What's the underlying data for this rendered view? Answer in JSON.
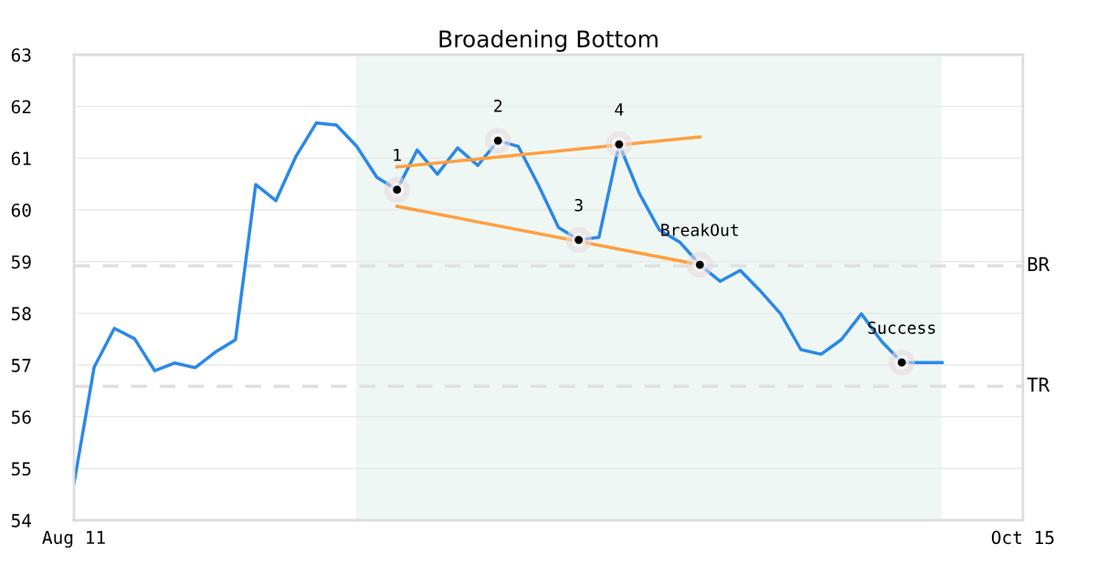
{
  "chart_data": {
    "type": "line",
    "title": "Broadening Bottom",
    "categories": [
      "Aug 11",
      null,
      null,
      null,
      null,
      null,
      null,
      null,
      null,
      null,
      null,
      null,
      null,
      null,
      null,
      null,
      null,
      null,
      null,
      null,
      null,
      null,
      null,
      null,
      null,
      null,
      null,
      null,
      null,
      null,
      null,
      null,
      null,
      null,
      null,
      null,
      null,
      null,
      null,
      null,
      null,
      null,
      null,
      null,
      null,
      null,
      null,
      "Oct 15"
    ],
    "ylim": [
      54,
      63
    ],
    "yticks": [
      54,
      55,
      56,
      57,
      58,
      59,
      60,
      61,
      62,
      63
    ],
    "grid": "y",
    "series": [
      {
        "color": "#2b88e8",
        "values": [
          54.71,
          56.96,
          57.71,
          57.51,
          56.89,
          57.04,
          56.95,
          57.25,
          57.49,
          60.49,
          60.18,
          61.04,
          61.68,
          61.64,
          61.23,
          60.63,
          60.39,
          61.16,
          60.69,
          61.2,
          60.86,
          61.34,
          61.23,
          60.48,
          59.66,
          59.42,
          59.47,
          61.27,
          60.32,
          59.61,
          59.38,
          58.94,
          58.62,
          58.83,
          58.43,
          57.99,
          57.3,
          57.21,
          57.49,
          57.99,
          57.46,
          57.05,
          57.05,
          57.05,
          null,
          null,
          null,
          null
        ]
      },
      {
        "type": "line",
        "color": "#ff9f40",
        "values": [
          null,
          null,
          null,
          null,
          null,
          null,
          null,
          null,
          null,
          null,
          null,
          null,
          null,
          null,
          null,
          null,
          60.83,
          null,
          null,
          null,
          null,
          null,
          null,
          null,
          null,
          null,
          null,
          null,
          null,
          null,
          null,
          61.41,
          null,
          null,
          null,
          null,
          null,
          null,
          null,
          null,
          null,
          null,
          null,
          null,
          null,
          null,
          null,
          null
        ]
      },
      {
        "type": "line",
        "color": "#ff9f40",
        "values": [
          null,
          null,
          null,
          null,
          null,
          null,
          null,
          null,
          null,
          null,
          null,
          null,
          null,
          null,
          null,
          null,
          60.07,
          null,
          null,
          null,
          null,
          null,
          null,
          null,
          null,
          null,
          null,
          null,
          null,
          null,
          null,
          58.94,
          null,
          null,
          null,
          null,
          null,
          null,
          null,
          null,
          null,
          null,
          null,
          null,
          null,
          null,
          null,
          null
        ]
      },
      {
        "type": "scatter",
        "color": "#000000",
        "marker": "circle",
        "values": [
          null,
          null,
          null,
          null,
          null,
          null,
          null,
          null,
          null,
          null,
          null,
          null,
          null,
          null,
          null,
          null,
          60.39,
          null,
          null,
          null,
          null,
          61.34,
          null,
          null,
          null,
          59.42,
          null,
          61.27,
          null,
          null,
          null,
          58.94,
          null,
          null,
          null,
          null,
          null,
          null,
          null,
          null,
          null,
          57.05,
          null,
          null,
          null,
          null,
          null,
          null
        ]
      }
    ],
    "ref_lines": [
      {
        "axis": "y",
        "value": 58.92,
        "label": "BR",
        "color": "#e0e0e0",
        "line_style": "dashed"
      },
      {
        "axis": "y",
        "value": 56.59,
        "label": "TR",
        "color": "#e0e0e0",
        "line_style": "dashed"
      }
    ],
    "annotations": [
      {
        "text": "1",
        "y": 60.39
      },
      {
        "text": "2",
        "y": 61.34
      },
      {
        "text": "3",
        "y": 59.42
      },
      {
        "text": "4",
        "y": 61.27
      },
      {
        "text": "BreakOut",
        "y": 58.94
      },
      {
        "text": "Success",
        "y": 57.05
      }
    ]
  }
}
